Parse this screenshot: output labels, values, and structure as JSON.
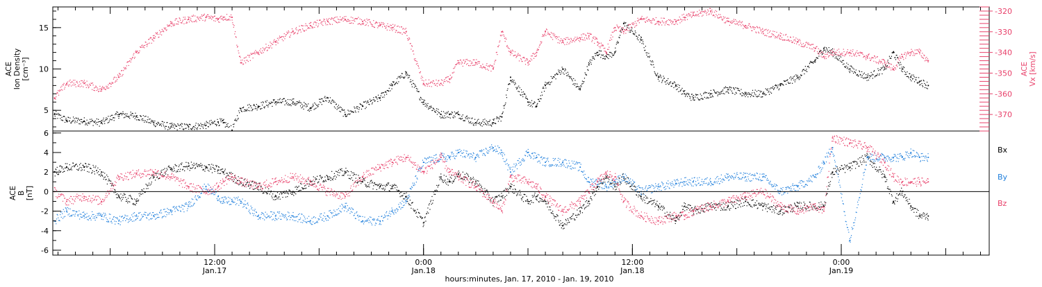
{
  "colors": {
    "density": "#000000",
    "vx": "#e8406a",
    "bx": "#000000",
    "by": "#1f7fdc",
    "bz": "#e8406a",
    "axis": "#000000"
  },
  "top_panel": {
    "left_label": "ACE\nIon Density\n[cm⁻³]",
    "right_label": "ACE\nVx [km/s]",
    "left_ticks": [
      "5",
      "10",
      "15"
    ],
    "right_ticks": [
      "-320",
      "-330",
      "-340",
      "-350",
      "-360",
      "-370"
    ]
  },
  "bottom_panel": {
    "left_label": "ACE\nB\n[nT]",
    "left_ticks": [
      "6",
      "4",
      "2",
      "0",
      "-2",
      "-4",
      "-6"
    ],
    "legend": [
      "Bx",
      "By",
      "Bz"
    ]
  },
  "x_axis": {
    "ticks": [
      {
        "time": "12:00",
        "date": "Jan.17"
      },
      {
        "time": "0:00",
        "date": "Jan.18"
      },
      {
        "time": "12:00",
        "date": "Jan.18"
      },
      {
        "time": "0:00",
        "date": "Jan.19"
      }
    ],
    "title": "hours:minutes, Jan. 17, 2010 - Jan. 19, 2010"
  },
  "chart_data": [
    {
      "type": "scatter",
      "xlabel": "hours:minutes, Jan. 17, 2010 - Jan. 19, 2010",
      "ylabel": "ACE Ion Density [cm⁻³]",
      "y2label": "ACE Vx [km/s]",
      "xlim": [
        2.7,
        56.5
      ],
      "ylim": [
        2.5,
        17.5
      ],
      "y2lim": [
        -378,
        -318
      ],
      "series": [
        {
          "name": "Ion Density",
          "axis": "left",
          "x": [
            2.8,
            3.5,
            4.5,
            5.5,
            6.5,
            7.5,
            8.5,
            9.5,
            10.5,
            11.5,
            12.2,
            12.5,
            13.0,
            13.5,
            14.5,
            15.5,
            16.5,
            17.5,
            18.5,
            19.5,
            20.5,
            21.5,
            22.2,
            23.0,
            24.0,
            25.0,
            25.5,
            26.0,
            27.0,
            28.0,
            28.5,
            29.0,
            30.0,
            30.5,
            31.0,
            32.0,
            33.0,
            33.5,
            34.0,
            34.5,
            35.0,
            35.5,
            36.5,
            37.5,
            38.5,
            39.0,
            39.5,
            40.5,
            41.5,
            42.5,
            43.5,
            44.5,
            45.5,
            46.5,
            47.0,
            47.5,
            48.5,
            49.5,
            50.5,
            51.0,
            51.5,
            52.0,
            52.5,
            53.0
          ],
          "y": [
            4.5,
            3.8,
            3.7,
            3.5,
            4.5,
            4.3,
            3.5,
            3.0,
            3.0,
            3.2,
            3.6,
            3.5,
            2.6,
            5.2,
            5.5,
            6.0,
            6.0,
            5.3,
            6.5,
            4.5,
            5.5,
            6.5,
            8.0,
            9.5,
            6.0,
            4.5,
            4.5,
            4.5,
            3.5,
            3.5,
            4.2,
            9.0,
            6.0,
            5.5,
            8.0,
            10.0,
            7.5,
            10.5,
            12.0,
            11.5,
            12.0,
            15.5,
            13.5,
            9.0,
            8.0,
            7.0,
            6.5,
            7.0,
            7.5,
            7.0,
            7.0,
            8.0,
            9.0,
            11.0,
            12.5,
            12.0,
            10.0,
            9.0,
            10.0,
            12.0,
            10.0,
            9.0,
            8.5,
            8.0
          ]
        },
        {
          "name": "Vx",
          "axis": "right",
          "x": [
            2.8,
            3.5,
            4.5,
            5.5,
            6.5,
            7.5,
            8.5,
            9.5,
            10.5,
            11.5,
            12.2,
            12.5,
            13.0,
            13.5,
            14.5,
            15.5,
            16.5,
            17.5,
            18.5,
            19.5,
            20.5,
            21.5,
            22.2,
            23.0,
            24.0,
            25.0,
            25.5,
            26.0,
            27.0,
            28.0,
            28.5,
            29.0,
            30.0,
            30.5,
            31.0,
            32.0,
            33.0,
            33.5,
            34.0,
            34.5,
            35.0,
            35.5,
            36.5,
            37.5,
            38.5,
            39.0,
            39.5,
            40.5,
            41.5,
            42.5,
            43.5,
            44.5,
            45.5,
            46.5,
            47.0,
            47.5,
            48.5,
            49.5,
            50.5,
            51.0,
            51.5,
            52.0,
            52.5,
            53.0
          ],
          "y": [
            -362,
            -355,
            -355,
            -358,
            -352,
            -340,
            -333,
            -326,
            -324,
            -323,
            -324,
            -323,
            -323,
            -345,
            -340,
            -335,
            -330,
            -327,
            -325,
            -324,
            -325,
            -327,
            -328,
            -330,
            -355,
            -355,
            -353,
            -345,
            -345,
            -348,
            -330,
            -340,
            -345,
            -340,
            -330,
            -335,
            -333,
            -332,
            -335,
            -340,
            -328,
            -330,
            -324,
            -325,
            -325,
            -323,
            -322,
            -320,
            -325,
            -327,
            -330,
            -332,
            -335,
            -338,
            -342,
            -340,
            -340,
            -342,
            -345,
            -348,
            -342,
            -340,
            -340,
            -344
          ]
        }
      ]
    },
    {
      "type": "scatter",
      "xlabel": "hours:minutes, Jan. 17, 2010 - Jan. 19, 2010",
      "ylabel": "ACE B [nT]",
      "xlim": [
        2.7,
        56.5
      ],
      "ylim": [
        -6.5,
        6.2
      ],
      "series": [
        {
          "name": "Bx",
          "x": [
            2.8,
            3.5,
            4.5,
            5.5,
            6.5,
            7.5,
            8.5,
            9.5,
            10.5,
            11.5,
            12.2,
            12.5,
            13.0,
            13.5,
            14.5,
            15.5,
            16.5,
            17.5,
            18.5,
            19.5,
            20.5,
            21.5,
            22.2,
            23.0,
            24.0,
            25.0,
            25.5,
            26.0,
            27.0,
            28.0,
            28.5,
            29.0,
            30.0,
            30.5,
            31.0,
            32.0,
            33.0,
            33.5,
            34.0,
            34.5,
            35.0,
            35.5,
            36.5,
            37.5,
            38.5,
            39.0,
            39.5,
            40.5,
            41.5,
            42.5,
            43.5,
            44.5,
            45.5,
            46.5,
            47.0,
            47.5,
            48.5,
            49.5,
            50.5,
            51.0,
            51.5,
            52.0,
            52.5,
            53.0
          ],
          "y": [
            2.0,
            2.5,
            2.5,
            2.0,
            -0.5,
            -1.0,
            1.5,
            2.3,
            2.6,
            2.5,
            2.2,
            2.0,
            1.5,
            1.0,
            0.5,
            -0.5,
            0.0,
            1.0,
            1.5,
            2.0,
            1.0,
            0.5,
            0.5,
            -0.5,
            -3.2,
            1.5,
            1.0,
            1.8,
            1.0,
            -1.0,
            -0.5,
            0.5,
            -1.0,
            -0.5,
            -1.0,
            -3.5,
            -2.0,
            -1.0,
            0.5,
            1.5,
            0.5,
            1.5,
            -0.5,
            -1.5,
            -3.0,
            -1.5,
            -2.0,
            -1.5,
            -1.5,
            -1.0,
            -1.5,
            -2.0,
            -1.5,
            -1.5,
            -1.5,
            2.0,
            2.5,
            3.5,
            1.5,
            -1.0,
            0.0,
            -1.5,
            -2.5,
            -2.5
          ]
        },
        {
          "name": "By",
          "x": [
            2.8,
            3.5,
            4.5,
            5.5,
            6.5,
            7.5,
            8.5,
            9.5,
            10.5,
            11.5,
            12.2,
            12.5,
            13.0,
            13.5,
            14.5,
            15.5,
            16.5,
            17.5,
            18.5,
            19.5,
            20.5,
            21.5,
            22.2,
            23.0,
            24.0,
            25.0,
            25.5,
            26.0,
            27.0,
            28.0,
            28.5,
            29.0,
            30.0,
            30.5,
            31.0,
            32.0,
            33.0,
            33.5,
            34.0,
            34.5,
            35.0,
            35.5,
            36.5,
            37.5,
            38.5,
            39.0,
            39.5,
            40.5,
            41.5,
            42.5,
            43.5,
            44.5,
            45.5,
            46.5,
            47.0,
            47.5,
            48.5,
            49.5,
            50.5,
            51.0,
            51.5,
            52.0,
            52.5,
            53.0
          ],
          "y": [
            -3.0,
            -2.0,
            -2.5,
            -2.5,
            -3.0,
            -2.5,
            -2.5,
            -2.0,
            -1.5,
            0.5,
            -0.5,
            -1.0,
            -1.0,
            -1.0,
            -2.5,
            -2.5,
            -2.5,
            -3.0,
            -2.5,
            -1.5,
            -3.0,
            -3.0,
            -2.0,
            -1.0,
            3.0,
            3.5,
            3.5,
            4.0,
            3.5,
            4.5,
            4.0,
            2.0,
            4.0,
            3.5,
            3.0,
            3.0,
            2.5,
            1.0,
            1.0,
            0.5,
            1.0,
            1.5,
            0.0,
            0.5,
            0.8,
            1.0,
            1.0,
            1.0,
            1.5,
            1.5,
            1.5,
            0.0,
            0.5,
            1.5,
            3.0,
            4.5,
            -5.0,
            3.5,
            3.5,
            3.5,
            3.5,
            4.0,
            3.5,
            3.5
          ]
        },
        {
          "name": "Bz",
          "x": [
            2.8,
            3.5,
            4.5,
            5.5,
            6.5,
            7.5,
            8.5,
            9.5,
            10.5,
            11.5,
            12.2,
            12.5,
            13.0,
            13.5,
            14.5,
            15.5,
            16.5,
            17.5,
            18.5,
            19.5,
            20.5,
            21.5,
            22.2,
            23.0,
            24.0,
            25.0,
            25.5,
            26.0,
            27.0,
            28.0,
            28.5,
            29.0,
            30.0,
            30.5,
            31.0,
            32.0,
            33.0,
            33.5,
            34.0,
            34.5,
            35.0,
            35.5,
            36.5,
            37.5,
            38.5,
            39.0,
            39.5,
            40.5,
            41.5,
            42.5,
            43.5,
            44.5,
            45.5,
            46.5,
            47.0,
            47.5,
            48.5,
            49.5,
            50.5,
            51.0,
            51.5,
            52.0,
            52.5,
            53.0
          ],
          "y": [
            0.0,
            -1.0,
            -0.5,
            -1.0,
            1.5,
            1.8,
            2.0,
            1.5,
            0.5,
            0.0,
            0.5,
            1.0,
            1.5,
            1.0,
            0.5,
            1.0,
            1.5,
            1.0,
            0.0,
            -0.5,
            1.5,
            2.5,
            3.0,
            3.5,
            2.0,
            3.5,
            2.0,
            1.5,
            0.5,
            -1.0,
            -2.0,
            1.5,
            1.0,
            0.5,
            -0.5,
            -2.0,
            -1.0,
            0.0,
            1.0,
            1.8,
            1.5,
            -1.0,
            -2.5,
            -3.0,
            -2.5,
            -2.5,
            -2.0,
            -1.5,
            -1.0,
            -0.5,
            0.0,
            -1.5,
            -2.0,
            -1.5,
            -2.0,
            5.5,
            5.0,
            4.5,
            3.0,
            1.5,
            1.0,
            1.0,
            1.0,
            1.0
          ]
        }
      ]
    }
  ]
}
